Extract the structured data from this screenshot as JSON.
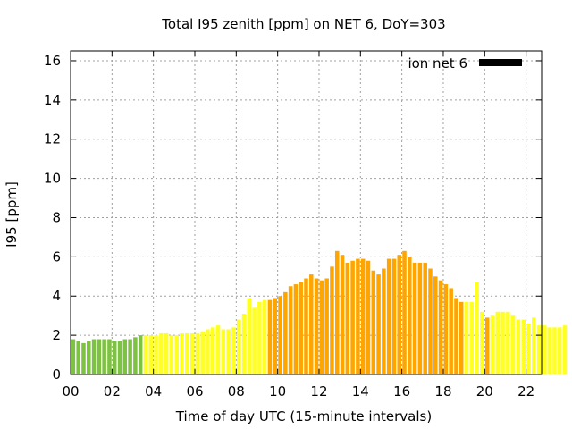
{
  "chart_data": {
    "type": "bar",
    "title": "Total I95 zenith [ppm] on NET 6, DoY=303",
    "xlabel": "Time of day UTC (15-minute intervals)",
    "ylabel": "I95 [ppm]",
    "xlim": [
      0,
      22.75
    ],
    "ylim": [
      0,
      16.5
    ],
    "x_ticks": [
      {
        "value": 0,
        "label": "00"
      },
      {
        "value": 2,
        "label": "02"
      },
      {
        "value": 4,
        "label": "04"
      },
      {
        "value": 6,
        "label": "06"
      },
      {
        "value": 8,
        "label": "08"
      },
      {
        "value": 10,
        "label": "10"
      },
      {
        "value": 12,
        "label": "12"
      },
      {
        "value": 14,
        "label": "14"
      },
      {
        "value": 16,
        "label": "16"
      },
      {
        "value": 18,
        "label": "18"
      },
      {
        "value": 20,
        "label": "20"
      },
      {
        "value": 22,
        "label": "22"
      }
    ],
    "y_ticks": [
      0,
      2,
      4,
      6,
      8,
      10,
      12,
      14,
      16
    ],
    "grid": true,
    "legend": {
      "label": "ion net 6",
      "color": "#000000",
      "placement": "top-right"
    },
    "interval_hours": 0.25,
    "colors": {
      "green": "#7dc242",
      "yellow": "#ffff22",
      "orange": "#ffa500"
    },
    "values": [
      1.8,
      1.7,
      1.6,
      1.7,
      1.8,
      1.8,
      1.8,
      1.8,
      1.7,
      1.7,
      1.8,
      1.8,
      1.9,
      2.0,
      2.0,
      2.0,
      2.0,
      2.1,
      2.1,
      2.0,
      2.0,
      2.1,
      2.1,
      2.1,
      2.1,
      2.2,
      2.3,
      2.4,
      2.5,
      2.3,
      2.3,
      2.4,
      2.8,
      3.1,
      3.9,
      3.4,
      3.7,
      3.8,
      3.8,
      3.9,
      4.0,
      4.2,
      4.5,
      4.6,
      4.7,
      4.9,
      5.1,
      4.9,
      4.8,
      4.9,
      5.5,
      6.3,
      6.1,
      5.7,
      5.8,
      5.9,
      5.9,
      5.8,
      5.3,
      5.1,
      5.4,
      5.9,
      5.9,
      6.1,
      6.3,
      6.0,
      5.7,
      5.7,
      5.7,
      5.4,
      5.0,
      4.8,
      4.6,
      4.4,
      3.9,
      3.7,
      3.7,
      3.7,
      4.7,
      3.2,
      2.9,
      3.0,
      3.2,
      3.2,
      3.2,
      3.0,
      2.8,
      2.8,
      2.6,
      2.9,
      2.5,
      2.5,
      2.4,
      2.4,
      2.4,
      2.5
    ],
    "bar_colors": [
      "green",
      "green",
      "green",
      "green",
      "green",
      "green",
      "green",
      "green",
      "green",
      "green",
      "green",
      "green",
      "green",
      "green",
      "yellow",
      "yellow",
      "yellow",
      "yellow",
      "yellow",
      "yellow",
      "yellow",
      "yellow",
      "yellow",
      "yellow",
      "yellow",
      "yellow",
      "yellow",
      "yellow",
      "yellow",
      "yellow",
      "yellow",
      "yellow",
      "yellow",
      "yellow",
      "yellow",
      "yellow",
      "yellow",
      "yellow",
      "orange",
      "orange",
      "orange",
      "orange",
      "orange",
      "orange",
      "orange",
      "orange",
      "orange",
      "orange",
      "orange",
      "orange",
      "orange",
      "orange",
      "orange",
      "orange",
      "orange",
      "orange",
      "orange",
      "orange",
      "orange",
      "orange",
      "orange",
      "orange",
      "orange",
      "orange",
      "orange",
      "orange",
      "orange",
      "orange",
      "orange",
      "orange",
      "orange",
      "orange",
      "orange",
      "orange",
      "orange",
      "orange",
      "yellow",
      "yellow",
      "yellow",
      "yellow",
      "orange",
      "yellow",
      "yellow",
      "yellow",
      "yellow",
      "yellow",
      "yellow",
      "yellow",
      "yellow",
      "yellow",
      "yellow",
      "yellow",
      "yellow",
      "yellow",
      "yellow",
      "yellow",
      "yellow",
      "yellow"
    ]
  }
}
